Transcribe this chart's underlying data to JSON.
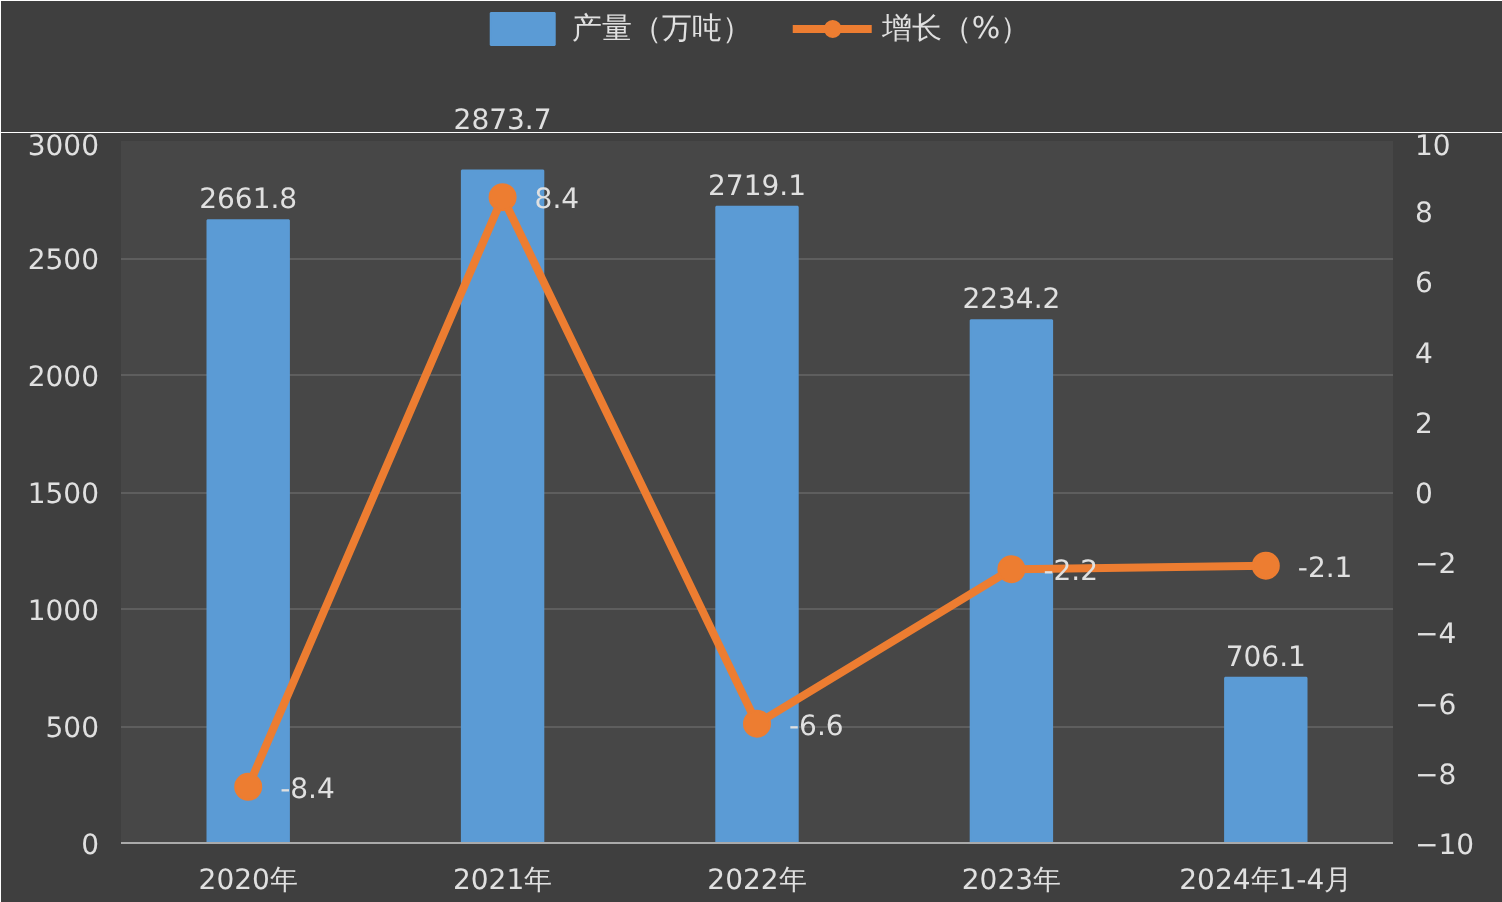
{
  "chart_data": {
    "type": "bar",
    "categories": [
      "2020年",
      "2021年",
      "2022年",
      "2023年",
      "2024年1-4月"
    ],
    "series": [
      {
        "name": "产量（万吨）",
        "color": "#5b9bd5",
        "values": [
          2661.8,
          2873.7,
          2719.1,
          2234.2,
          706.1
        ]
      },
      {
        "name": "增长（%）",
        "type": "line",
        "axis": "y2",
        "color": "#ed7d31",
        "values": [
          -8.4,
          8.4,
          -6.6,
          -2.2,
          -2.1
        ]
      }
    ],
    "ylim": [
      0,
      3000
    ],
    "yticks": [
      0,
      500,
      1000,
      1500,
      2000,
      2500,
      3000
    ],
    "y2lim": [
      -10,
      10
    ],
    "y2ticks": [
      -10,
      -8,
      -6,
      -4,
      -2,
      0,
      2,
      4,
      6,
      8,
      10
    ],
    "data_labels": true,
    "grid": "y",
    "legend": "top",
    "marker": "circle"
  }
}
